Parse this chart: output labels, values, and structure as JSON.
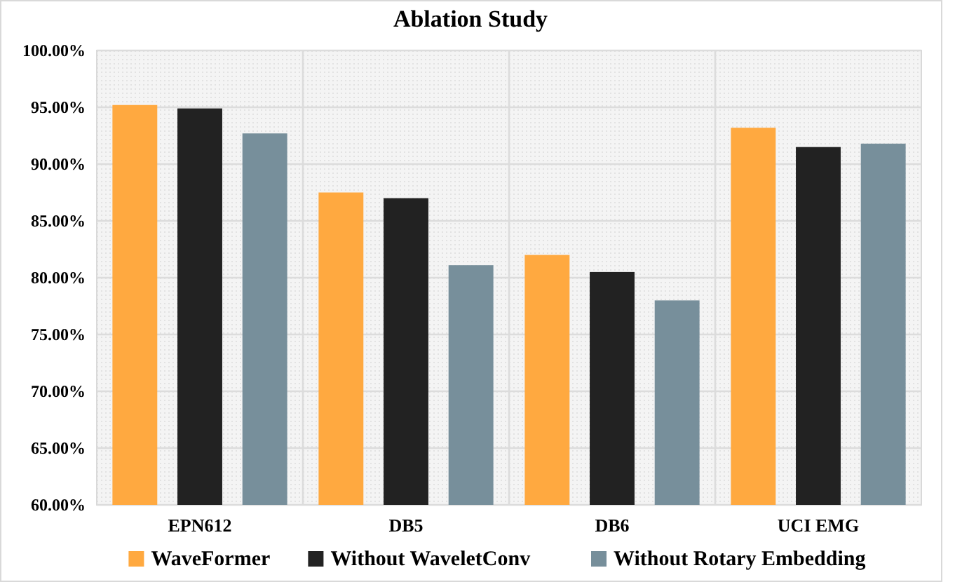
{
  "chart_data": {
    "type": "bar",
    "title": "Ablation Study",
    "categories": [
      "EPN612",
      "DB5",
      "DB6",
      "UCI EMG"
    ],
    "series": [
      {
        "name": "WaveFormer",
        "color": "#ffa940",
        "values": [
          95.2,
          87.5,
          82.0,
          93.2
        ]
      },
      {
        "name": "Without WaveletConv",
        "color": "#222222",
        "values": [
          94.9,
          87.0,
          80.5,
          91.5
        ]
      },
      {
        "name": "Without Rotary Embedding",
        "color": "#778f9b",
        "values": [
          92.7,
          81.1,
          78.0,
          91.8
        ]
      }
    ],
    "ylim": [
      60,
      100
    ],
    "yticks": [
      {
        "value": 60,
        "label": "60.00%"
      },
      {
        "value": 65,
        "label": "65.00%"
      },
      {
        "value": 70,
        "label": "70.00%"
      },
      {
        "value": 75,
        "label": "75.00%"
      },
      {
        "value": 80,
        "label": "80.00%"
      },
      {
        "value": 85,
        "label": "85.00%"
      },
      {
        "value": 90,
        "label": "90.00%"
      },
      {
        "value": 95,
        "label": "95.00%"
      },
      {
        "value": 100,
        "label": "100.00%"
      }
    ],
    "grid": true,
    "legend": "bottom"
  }
}
